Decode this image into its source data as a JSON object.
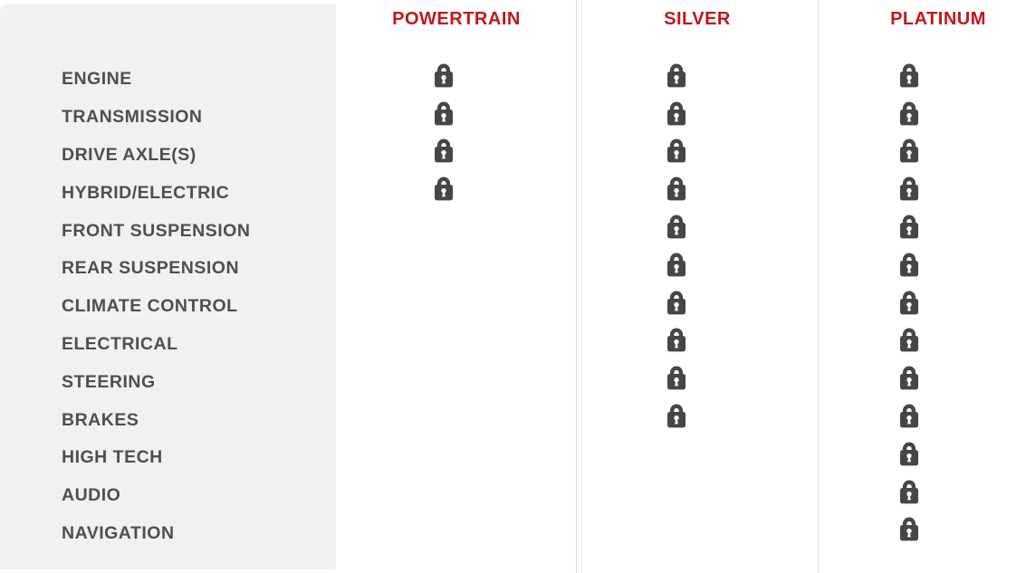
{
  "columns": [
    {
      "label": "POWERTRAIN"
    },
    {
      "label": "SILVER"
    },
    {
      "label": "PLATINUM"
    }
  ],
  "rows": [
    {
      "label": "ENGINE",
      "covered": [
        true,
        true,
        true
      ]
    },
    {
      "label": "TRANSMISSION",
      "covered": [
        true,
        true,
        true
      ]
    },
    {
      "label": "DRIVE AXLE(S)",
      "covered": [
        true,
        true,
        true
      ]
    },
    {
      "label": "HYBRID/ELECTRIC",
      "covered": [
        true,
        true,
        true
      ]
    },
    {
      "label": "FRONT SUSPENSION",
      "covered": [
        false,
        true,
        true
      ]
    },
    {
      "label": "REAR SUSPENSION",
      "covered": [
        false,
        true,
        true
      ]
    },
    {
      "label": "CLIMATE CONTROL",
      "covered": [
        false,
        true,
        true
      ]
    },
    {
      "label": "ELECTRICAL",
      "covered": [
        false,
        true,
        true
      ]
    },
    {
      "label": "STEERING",
      "covered": [
        false,
        true,
        true
      ]
    },
    {
      "label": "BRAKES",
      "covered": [
        false,
        true,
        true
      ]
    },
    {
      "label": "HIGH TECH",
      "covered": [
        false,
        false,
        true
      ]
    },
    {
      "label": "AUDIO",
      "covered": [
        false,
        false,
        true
      ]
    },
    {
      "label": "NAVIGATION",
      "covered": [
        false,
        false,
        true
      ]
    }
  ],
  "icons": {
    "covered_icon": "lock-icon"
  },
  "colors": {
    "header_text": "#c2171d",
    "row_label_text": "#4f4f4f",
    "panel_background": "#f1f1f1",
    "lock": "#464646",
    "separator": "#dedede",
    "background": "#ffffff"
  }
}
